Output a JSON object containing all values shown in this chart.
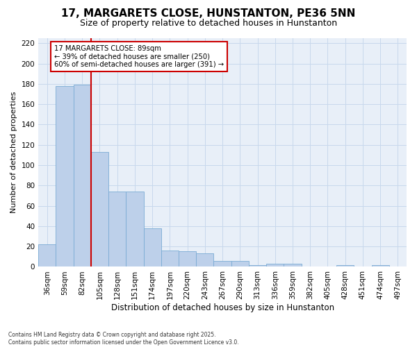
{
  "title": "17, MARGARETS CLOSE, HUNSTANTON, PE36 5NN",
  "subtitle": "Size of property relative to detached houses in Hunstanton",
  "xlabel": "Distribution of detached houses by size in Hunstanton",
  "ylabel": "Number of detached properties",
  "categories": [
    "36sqm",
    "59sqm",
    "82sqm",
    "105sqm",
    "128sqm",
    "151sqm",
    "174sqm",
    "197sqm",
    "220sqm",
    "243sqm",
    "267sqm",
    "290sqm",
    "313sqm",
    "336sqm",
    "359sqm",
    "382sqm",
    "405sqm",
    "428sqm",
    "451sqm",
    "474sqm",
    "497sqm"
  ],
  "values": [
    22,
    178,
    179,
    113,
    74,
    74,
    38,
    16,
    15,
    13,
    6,
    6,
    2,
    3,
    3,
    0,
    0,
    2,
    0,
    2,
    0
  ],
  "bar_color": "#bdd0ea",
  "bar_edge_color": "#7aabd4",
  "vline_color": "#cc0000",
  "annotation_line1": "17 MARGARETS CLOSE: 89sqm",
  "annotation_line2": "← 39% of detached houses are smaller (250)",
  "annotation_line3": "60% of semi-detached houses are larger (391) →",
  "annotation_box_color": "#cc0000",
  "ylim_max": 225,
  "yticks": [
    0,
    20,
    40,
    60,
    80,
    100,
    120,
    140,
    160,
    180,
    200,
    220
  ],
  "grid_color": "#c8d8ec",
  "plot_bg_color": "#e8eff8",
  "footer_line1": "Contains HM Land Registry data © Crown copyright and database right 2025.",
  "footer_line2": "Contains public sector information licensed under the Open Government Licence v3.0.",
  "title_fontsize": 11,
  "subtitle_fontsize": 9,
  "tick_fontsize": 7.5,
  "ylabel_fontsize": 8,
  "xlabel_fontsize": 8.5
}
